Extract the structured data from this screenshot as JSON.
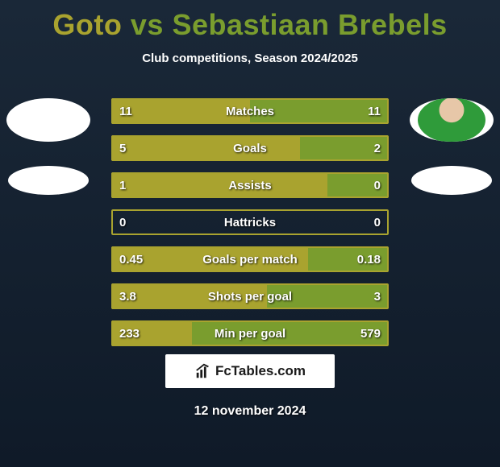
{
  "header": {
    "title_left": "Goto",
    "title_vs": "vs",
    "title_right": "Sebastiaan Brebels",
    "title_color_left": "#a9a32f",
    "title_color_vs": "#7a9d2e",
    "title_color_right": "#7a9d2e",
    "subtitle": "Club competitions, Season 2024/2025"
  },
  "players": {
    "left": {
      "has_photo": false
    },
    "right": {
      "has_photo": true
    }
  },
  "palette": {
    "left_fill": "#a9a32f",
    "right_fill": "#7a9d2e",
    "outline": "#a9a32f",
    "bg_gradient_top": "#1a2838",
    "bg_gradient_bottom": "#0f1a28",
    "text": "#ffffff"
  },
  "stats": [
    {
      "label": "Matches",
      "left_val": "11",
      "right_val": "11",
      "left_pct": 50,
      "right_pct": 50
    },
    {
      "label": "Goals",
      "left_val": "5",
      "right_val": "2",
      "left_pct": 68,
      "right_pct": 32
    },
    {
      "label": "Assists",
      "left_val": "1",
      "right_val": "0",
      "left_pct": 78,
      "right_pct": 22
    },
    {
      "label": "Hattricks",
      "left_val": "0",
      "right_val": "0",
      "left_pct": 0,
      "right_pct": 0
    },
    {
      "label": "Goals per match",
      "left_val": "0.45",
      "right_val": "0.18",
      "left_pct": 71,
      "right_pct": 29
    },
    {
      "label": "Shots per goal",
      "left_val": "3.8",
      "right_val": "3",
      "left_pct": 56,
      "right_pct": 44
    },
    {
      "label": "Min per goal",
      "left_val": "233",
      "right_val": "579",
      "left_pct": 29,
      "right_pct": 71
    }
  ],
  "footer": {
    "brand": "FcTables.com",
    "date": "12 november 2024"
  },
  "typography": {
    "title_fontsize": 36,
    "subtitle_fontsize": 15,
    "stat_fontsize": 15,
    "footer_fontsize": 16
  }
}
